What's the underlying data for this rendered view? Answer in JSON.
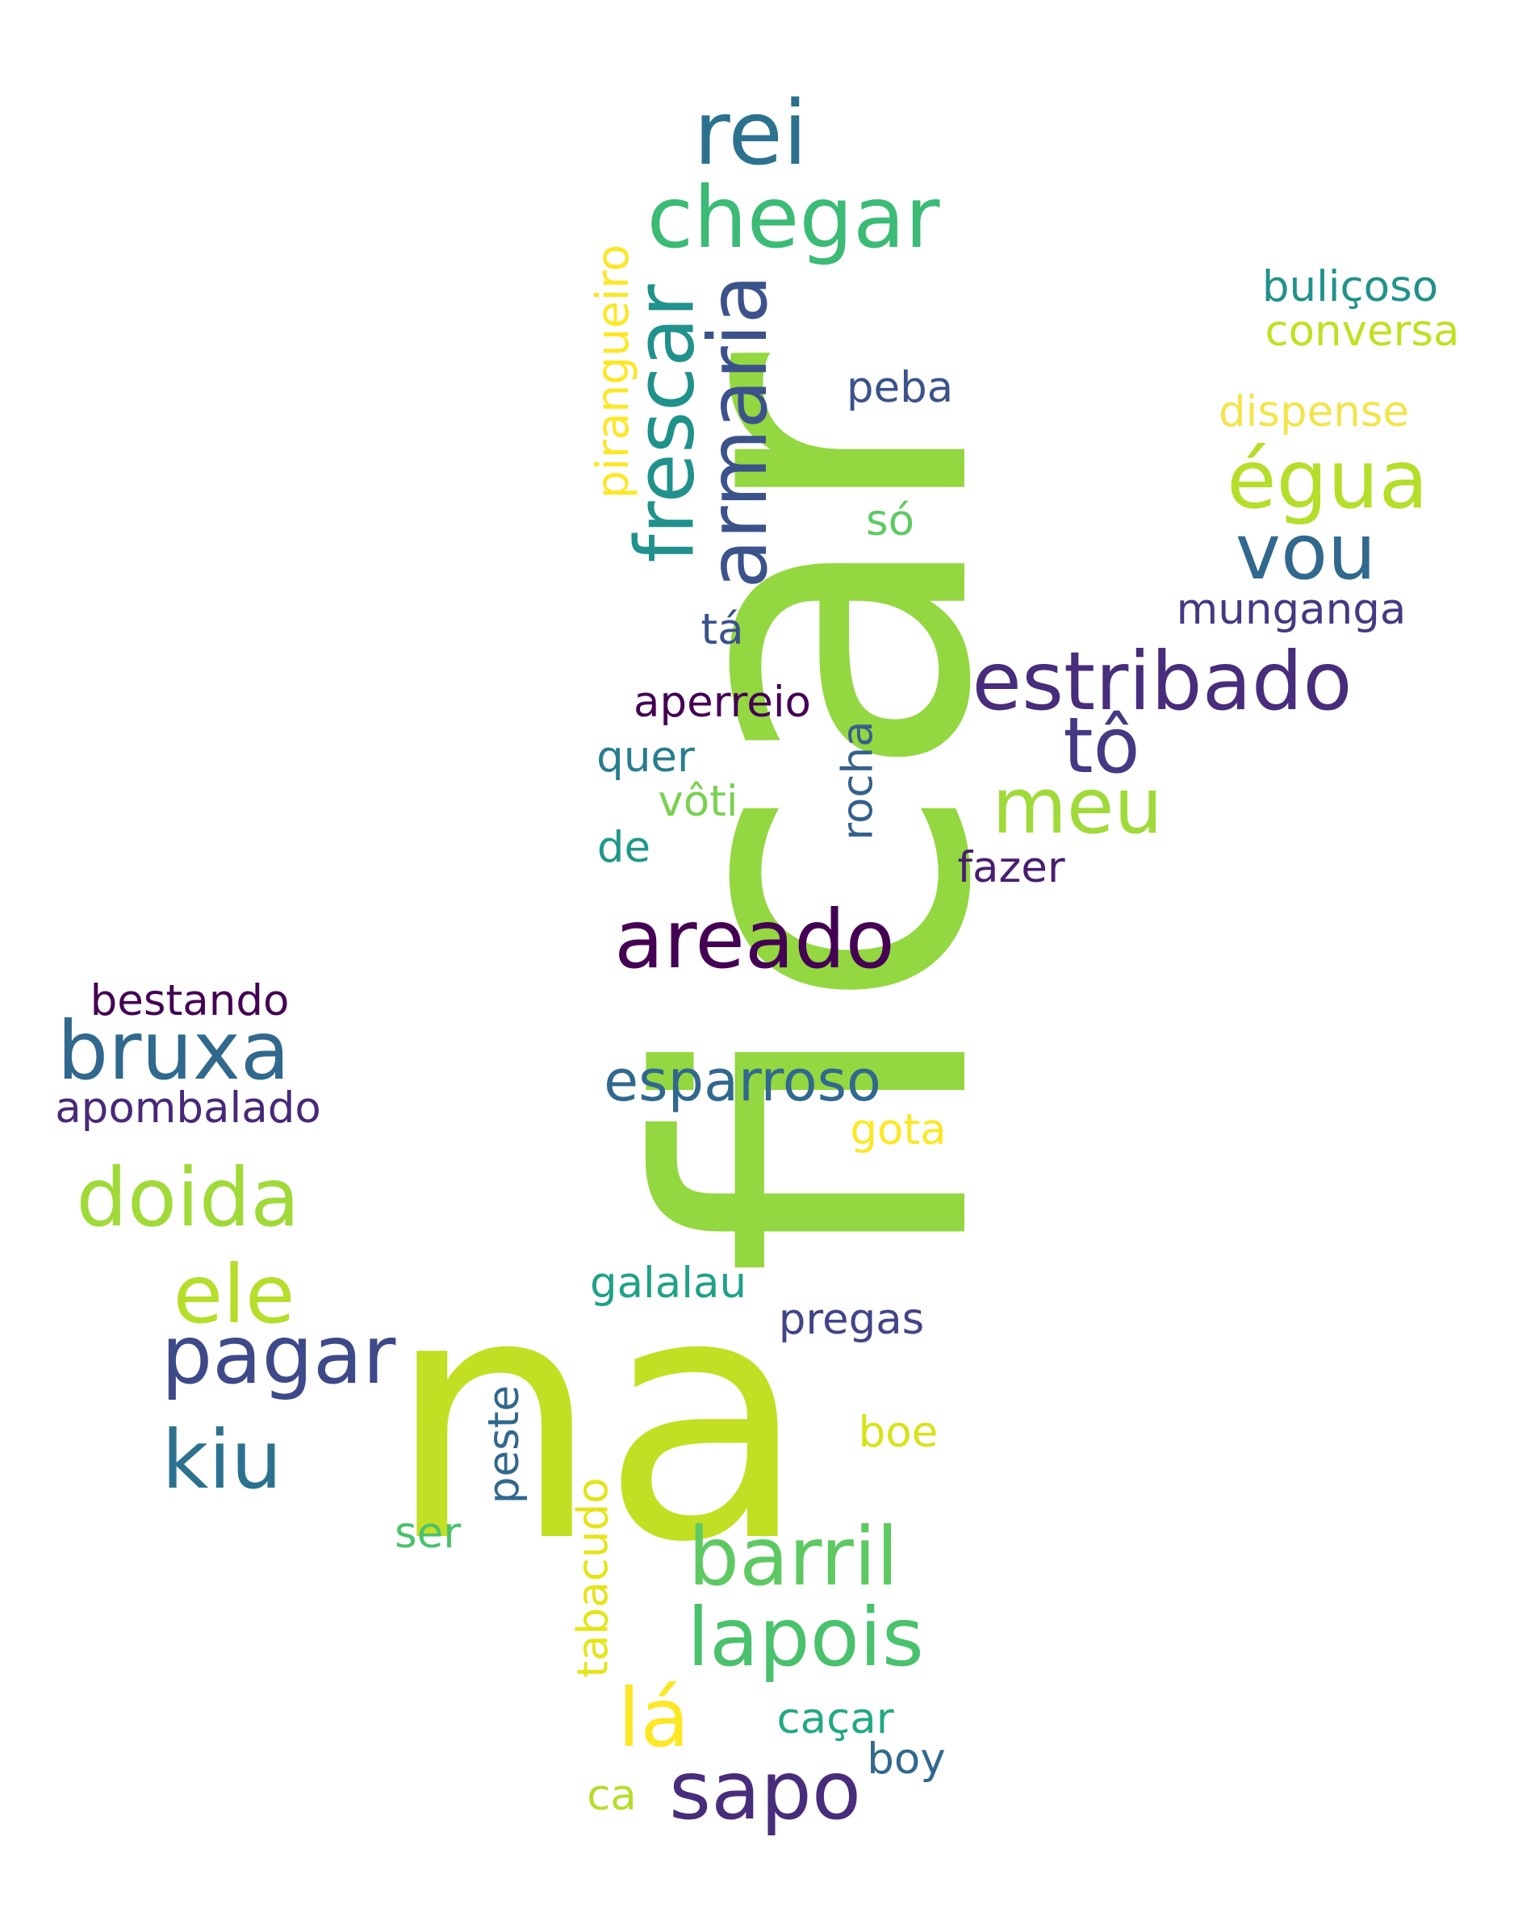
{
  "words": [
    {
      "id": "ficar",
      "text": "ficar",
      "color": "#93d741"
    },
    {
      "id": "na",
      "text": "na",
      "color": "#c2df23"
    },
    {
      "id": "rei",
      "text": "rei",
      "color": "#2c728e"
    },
    {
      "id": "chegar",
      "text": "chegar",
      "color": "#3bbb75"
    },
    {
      "id": "armaria",
      "text": "armaria",
      "color": "#3b528b"
    },
    {
      "id": "frescar",
      "text": "frescar",
      "color": "#21918c"
    },
    {
      "id": "pirangueiro",
      "text": "pirangueiro",
      "color": "#fde725"
    },
    {
      "id": "buliçoso",
      "text": "buliçoso",
      "color": "#21918c"
    },
    {
      "id": "conversa",
      "text": "conversa",
      "color": "#c2df23"
    },
    {
      "id": "peba",
      "text": "peba",
      "color": "#3b528b"
    },
    {
      "id": "dispense",
      "text": "dispense",
      "color": "#f3e44c"
    },
    {
      "id": "égua",
      "text": "égua",
      "color": "#b5de2b"
    },
    {
      "id": "vou",
      "text": "vou",
      "color": "#31688e"
    },
    {
      "id": "só",
      "text": "só",
      "color": "#5ec962"
    },
    {
      "id": "munganga",
      "text": "munganga",
      "color": "#443983"
    },
    {
      "id": "tá",
      "text": "tá",
      "color": "#3b528b"
    },
    {
      "id": "estribado",
      "text": "estribado",
      "color": "#472d7b"
    },
    {
      "id": "aperreio",
      "text": "aperreio",
      "color": "#440154"
    },
    {
      "id": "tô",
      "text": "tô",
      "color": "#443983"
    },
    {
      "id": "quer",
      "text": "quer",
      "color": "#287d8e"
    },
    {
      "id": "rocha",
      "text": "rocha",
      "color": "#35608d"
    },
    {
      "id": "meu",
      "text": "meu",
      "color": "#a0da39"
    },
    {
      "id": "vôti",
      "text": "vôti",
      "color": "#7ad151"
    },
    {
      "id": "de",
      "text": "de",
      "color": "#1f988b"
    },
    {
      "id": "fazer",
      "text": "fazer",
      "color": "#481f70"
    },
    {
      "id": "areado",
      "text": "areado",
      "color": "#440154"
    },
    {
      "id": "bestando",
      "text": "bestando",
      "color": "#440154"
    },
    {
      "id": "bruxa",
      "text": "bruxa",
      "color": "#31688e"
    },
    {
      "id": "esparroso",
      "text": "esparroso",
      "color": "#31688e"
    },
    {
      "id": "apombalado",
      "text": "apombalado",
      "color": "#482878"
    },
    {
      "id": "gota",
      "text": "gota",
      "color": "#fde725"
    },
    {
      "id": "doida",
      "text": "doida",
      "color": "#a0da39"
    },
    {
      "id": "ele",
      "text": "ele",
      "color": "#b5de2b"
    },
    {
      "id": "galalau",
      "text": "galalau",
      "color": "#1fa187"
    },
    {
      "id": "pregas",
      "text": "pregas",
      "color": "#414487"
    },
    {
      "id": "pagar",
      "text": "pagar",
      "color": "#3e4989"
    },
    {
      "id": "kiu",
      "text": "kiu",
      "color": "#2c728e"
    },
    {
      "id": "boe",
      "text": "boe",
      "color": "#d8e219"
    },
    {
      "id": "peste",
      "text": "peste",
      "color": "#31688e"
    },
    {
      "id": "tabacudo",
      "text": "tabacudo",
      "color": "#e5e419"
    },
    {
      "id": "ser",
      "text": "ser",
      "color": "#4ac16d"
    },
    {
      "id": "barril",
      "text": "barril",
      "color": "#5ec962"
    },
    {
      "id": "lapois",
      "text": "lapois",
      "color": "#4ac16d"
    },
    {
      "id": "lá",
      "text": "lá",
      "color": "#fde725"
    },
    {
      "id": "caçar",
      "text": "caçar",
      "color": "#22a884"
    },
    {
      "id": "boy",
      "text": "boy",
      "color": "#31688e"
    },
    {
      "id": "ca",
      "text": "ca",
      "color": "#b5de2b"
    },
    {
      "id": "sapo",
      "text": "sapo",
      "color": "#472d7b"
    }
  ]
}
